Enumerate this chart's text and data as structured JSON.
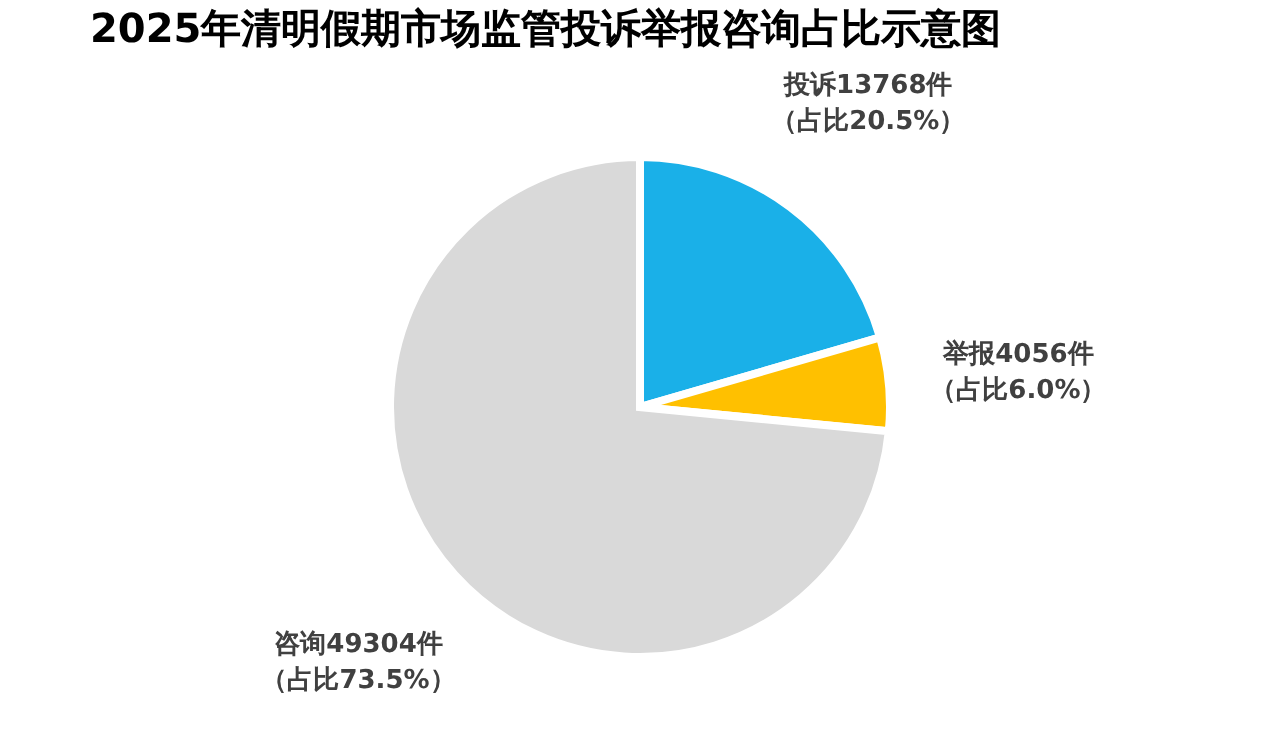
{
  "chart_data": {
    "type": "pie",
    "title": "2025年清明假期市场监管投诉举报咨询占比示意图",
    "categories": [
      "投诉13768件",
      "举报4056件",
      "咨询49304件"
    ],
    "values": [
      13768,
      4056,
      49304
    ],
    "value_labels": [
      "（占比20.5%）",
      "（占比6.0%）",
      "（占比73.5%）"
    ],
    "colors": [
      "#1ab0e8",
      "#ffc000",
      "#d9d9d9"
    ],
    "legend": false
  }
}
